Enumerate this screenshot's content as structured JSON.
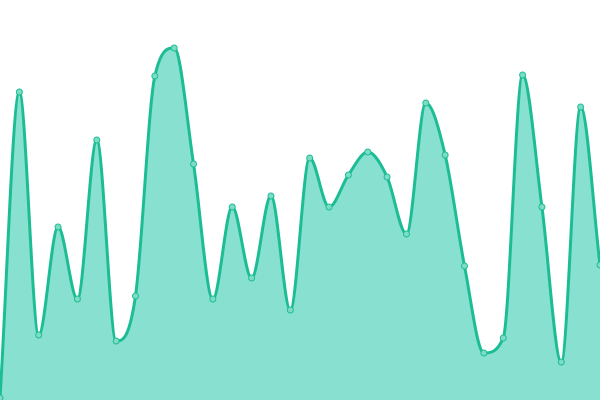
{
  "chart_data": {
    "type": "area",
    "title": "",
    "xlabel": "",
    "ylabel": "",
    "x": [
      0,
      1,
      2,
      3,
      4,
      5,
      6,
      7,
      8,
      9,
      10,
      11,
      12,
      13,
      14,
      15,
      16,
      17,
      18,
      19,
      20,
      21,
      22,
      23,
      24,
      25,
      26,
      27,
      28,
      29,
      30,
      31
    ],
    "values": [
      2,
      308,
      65,
      173,
      101,
      260,
      59,
      104,
      324,
      352,
      236,
      101,
      193,
      122,
      204,
      90,
      242,
      193,
      225,
      248,
      223,
      166,
      297,
      245,
      134,
      47,
      62,
      325,
      193,
      38,
      293,
      135
    ],
    "ylim": [
      0,
      400
    ],
    "grid": false,
    "axes_visible": false,
    "smooth": true,
    "markers": true,
    "colors": {
      "line": "#1dbd94",
      "fill": "#88e0d0",
      "marker_fill": "#7ddcc4",
      "marker_stroke": "#ffffff"
    }
  }
}
